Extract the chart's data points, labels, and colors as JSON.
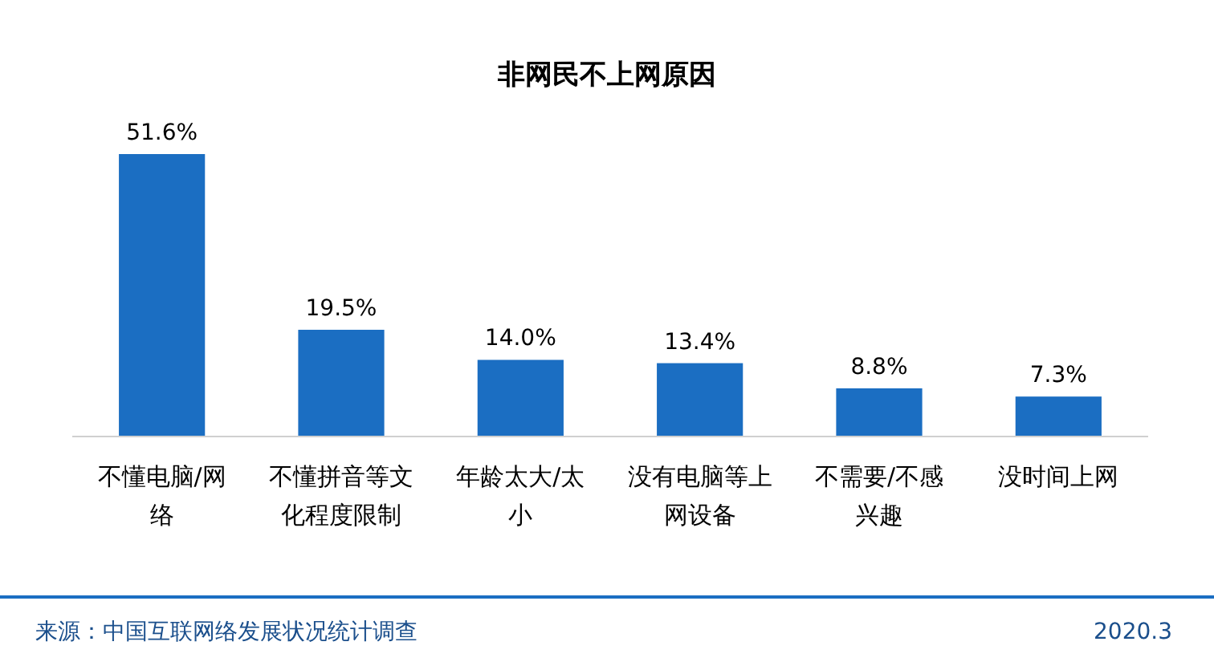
{
  "chart_data": {
    "type": "bar",
    "title": "非网民不上网原因",
    "categories": [
      "不懂电脑/网络",
      "不懂拼音等文化程度限制",
      "年龄太大/太小",
      "没有电脑等上网设备",
      "不需要/不感兴趣",
      "没时间上网"
    ],
    "values": [
      51.6,
      19.5,
      14.0,
      13.4,
      8.8,
      7.3
    ],
    "value_labels": [
      "51.6%",
      "19.5%",
      "14.0%",
      "13.4%",
      "8.8%",
      "7.3%"
    ],
    "color": "#1b6ec2",
    "annotations": [
      "来源：中国互联网络发展状况统计调查",
      "2020.3"
    ]
  }
}
